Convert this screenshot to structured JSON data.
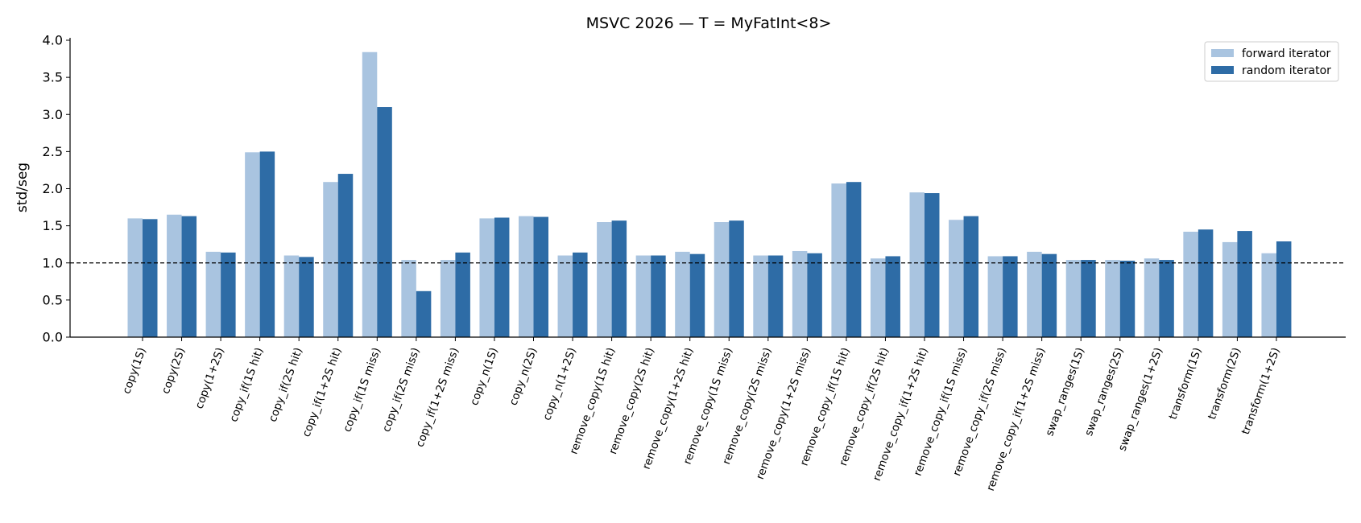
{
  "chart_data": {
    "type": "bar",
    "title": "MSVC 2026 — T = MyFatInt<8>",
    "xlabel": "",
    "ylabel": "std/seg",
    "ylim": [
      0,
      4.0
    ],
    "yticks": [
      "0.0",
      "0.5",
      "1.0",
      "1.5",
      "2.0",
      "2.5",
      "3.0",
      "3.5",
      "4.0"
    ],
    "reference_line": 1.0,
    "grid": false,
    "legend_position": "top-right",
    "categories": [
      "copy(1S)",
      "copy(2S)",
      "copy(1+2S)",
      "copy_if(1S hit)",
      "copy_if(2S hit)",
      "copy_if(1+2S hit)",
      "copy_if(1S miss)",
      "copy_if(2S miss)",
      "copy_if(1+2S miss)",
      "copy_n(1S)",
      "copy_n(2S)",
      "copy_n(1+2S)",
      "remove_copy(1S hit)",
      "remove_copy(2S hit)",
      "remove_copy(1+2S hit)",
      "remove_copy(1S miss)",
      "remove_copy(2S miss)",
      "remove_copy(1+2S miss)",
      "remove_copy_if(1S hit)",
      "remove_copy_if(2S hit)",
      "remove_copy_if(1+2S hit)",
      "remove_copy_if(1S miss)",
      "remove_copy_if(2S miss)",
      "remove_copy_if(1+2S miss)",
      "swap_ranges(1S)",
      "swap_ranges(2S)",
      "swap_ranges(1+2S)",
      "transform(1S)",
      "transform(2S)",
      "transform(1+2S)"
    ],
    "series": [
      {
        "name": "forward iterator",
        "color": "#a9c4e0",
        "values": [
          1.6,
          1.65,
          1.15,
          2.49,
          1.1,
          2.09,
          3.84,
          1.04,
          1.04,
          1.6,
          1.63,
          1.1,
          1.55,
          1.1,
          1.15,
          1.55,
          1.1,
          1.16,
          2.07,
          1.06,
          1.95,
          1.58,
          1.09,
          1.15,
          1.04,
          1.04,
          1.06,
          1.42,
          1.28,
          1.13
        ]
      },
      {
        "name": "random iterator",
        "color": "#2e6ca6",
        "values": [
          1.59,
          1.63,
          1.14,
          2.5,
          1.08,
          2.2,
          3.1,
          0.62,
          1.14,
          1.61,
          1.62,
          1.14,
          1.57,
          1.1,
          1.12,
          1.57,
          1.1,
          1.13,
          2.09,
          1.09,
          1.94,
          1.63,
          1.09,
          1.12,
          1.04,
          1.03,
          1.04,
          1.45,
          1.43,
          1.29
        ]
      }
    ]
  }
}
